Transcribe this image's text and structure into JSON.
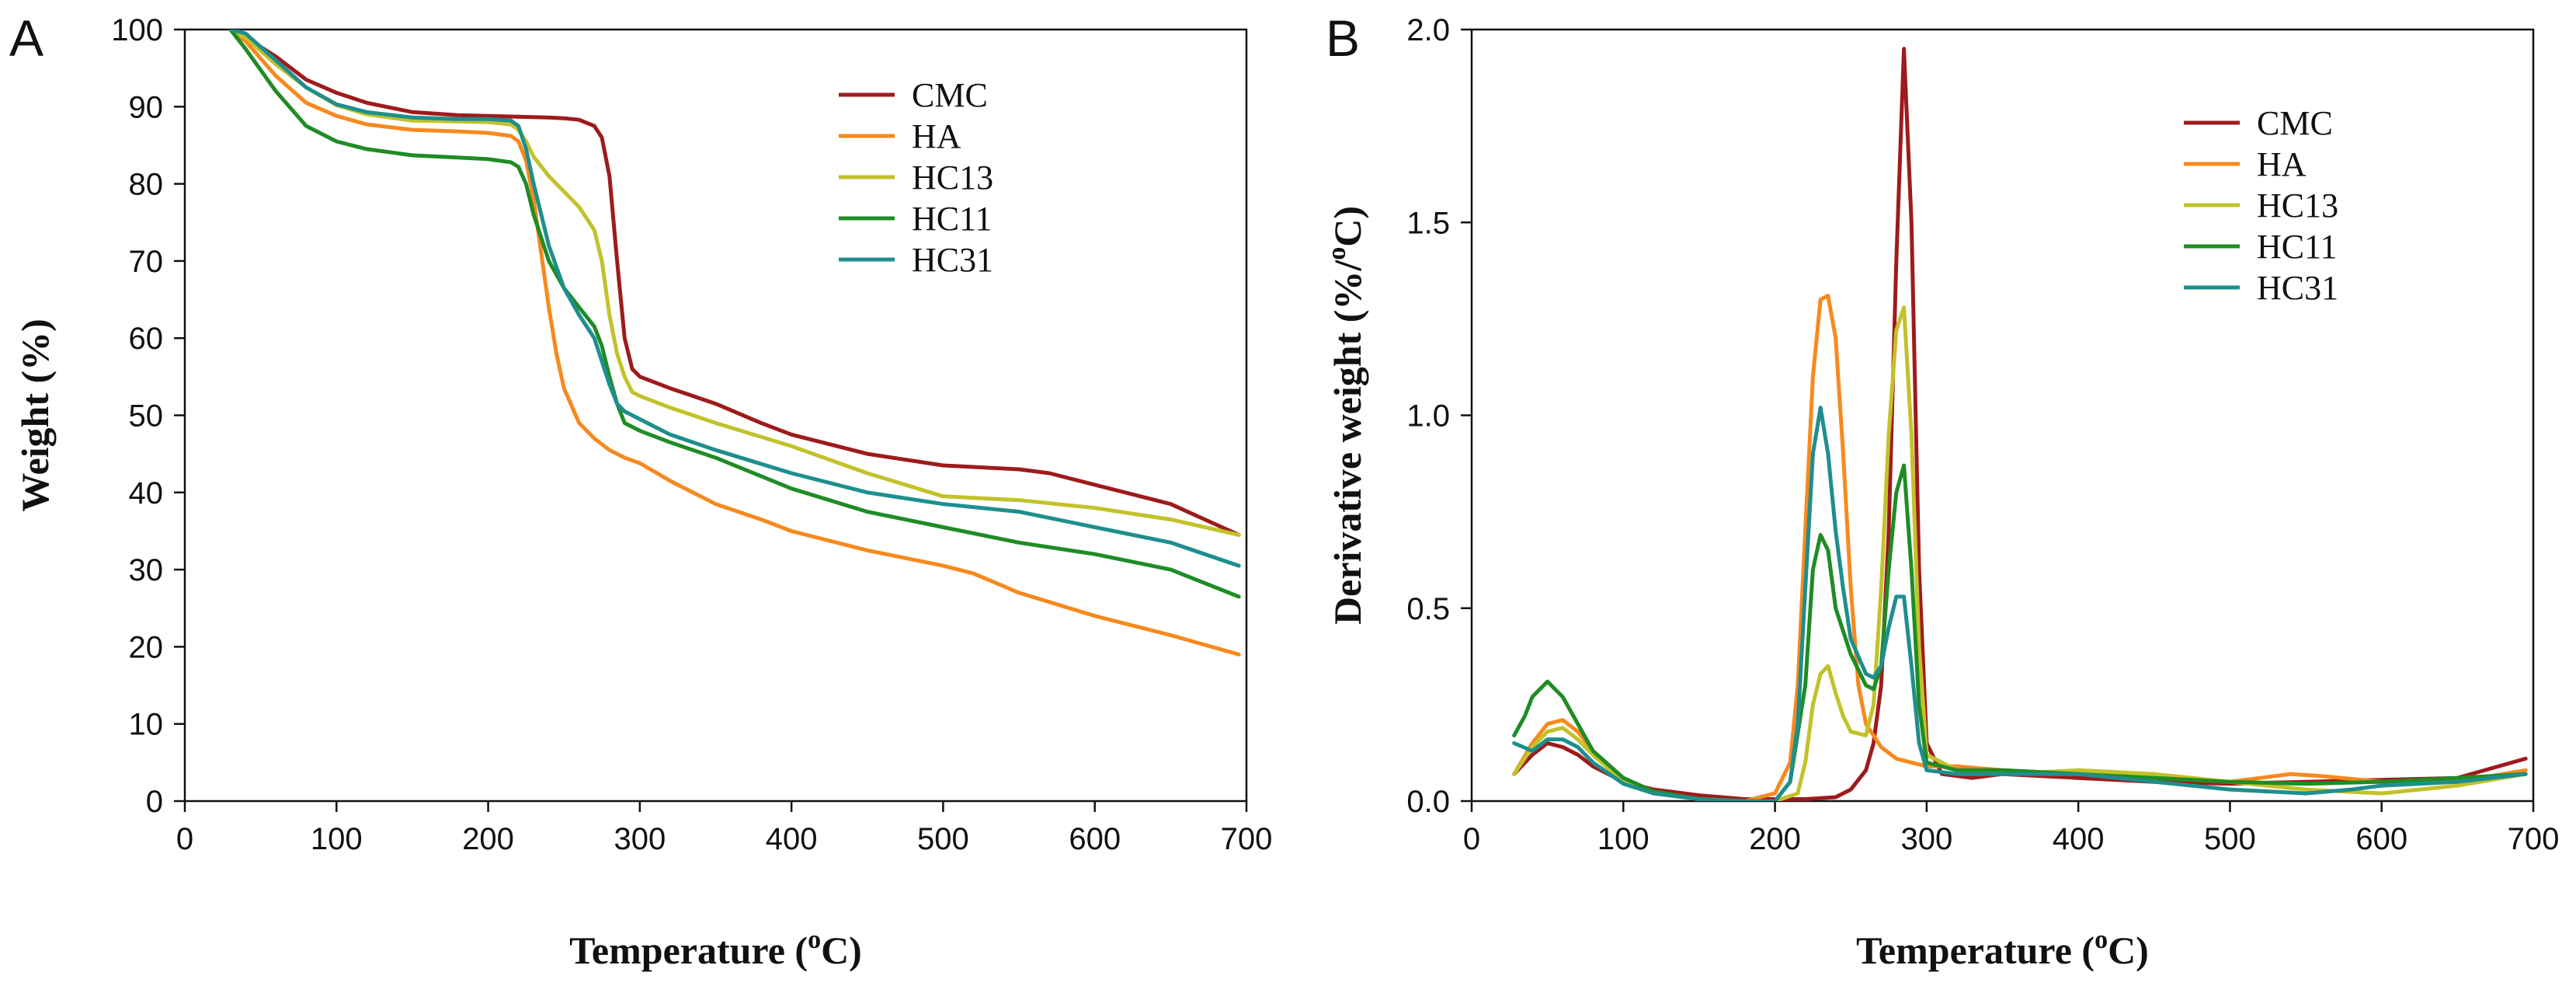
{
  "figure": {
    "background": "#ffffff"
  },
  "chart_data": [
    {
      "id": "A",
      "panel_label": "A",
      "type": "line",
      "title": "",
      "xlabel": {
        "pre": "Temperature (",
        "sup": "o",
        "post": "C)"
      },
      "ylabel": {
        "text": "Weight (%)"
      },
      "xlim": [
        0,
        700
      ],
      "ylim": [
        0,
        100
      ],
      "xticks": [
        0,
        100,
        200,
        300,
        400,
        500,
        600,
        700
      ],
      "yticks": [
        0,
        10,
        20,
        30,
        40,
        50,
        60,
        70,
        80,
        90,
        100
      ],
      "grid": false,
      "legend": "top-right",
      "series": [
        {
          "name": "CMC",
          "color": "#9e1b1b",
          "x": [
            30,
            40,
            60,
            80,
            100,
            120,
            150,
            180,
            200,
            220,
            240,
            250,
            260,
            270,
            275,
            280,
            285,
            290,
            295,
            300,
            320,
            350,
            380,
            400,
            450,
            500,
            550,
            570,
            600,
            650,
            695
          ],
          "y": [
            100,
            99,
            96.5,
            93.5,
            91.8,
            90.5,
            89.3,
            88.9,
            88.8,
            88.7,
            88.6,
            88.5,
            88.3,
            87.5,
            86,
            81,
            70,
            60,
            56,
            55,
            53.5,
            51.5,
            49,
            47.5,
            45,
            43.5,
            43,
            42.5,
            41,
            38.5,
            34.5
          ]
        },
        {
          "name": "HA",
          "color": "#f7891e",
          "x": [
            30,
            40,
            60,
            80,
            100,
            120,
            150,
            180,
            200,
            215,
            220,
            225,
            230,
            235,
            240,
            245,
            250,
            260,
            270,
            280,
            290,
            300,
            320,
            350,
            380,
            400,
            450,
            500,
            520,
            550,
            600,
            650,
            695
          ],
          "y": [
            100,
            98.5,
            94,
            90.5,
            88.8,
            87.7,
            87,
            86.8,
            86.6,
            86.2,
            85.5,
            83,
            78,
            71,
            64,
            58,
            53.5,
            49,
            47,
            45.5,
            44.5,
            43.8,
            41.5,
            38.5,
            36.5,
            35,
            32.5,
            30.5,
            29.5,
            27,
            24,
            21.5,
            19
          ]
        },
        {
          "name": "HC13",
          "color": "#c2c22a",
          "x": [
            30,
            40,
            60,
            80,
            100,
            120,
            150,
            180,
            200,
            215,
            220,
            225,
            230,
            240,
            250,
            260,
            270,
            275,
            280,
            285,
            290,
            295,
            300,
            320,
            350,
            400,
            450,
            500,
            550,
            600,
            650,
            695
          ],
          "y": [
            100,
            99,
            95.5,
            92.5,
            90.2,
            89,
            88.2,
            88.1,
            88,
            87.7,
            87,
            85.5,
            83.5,
            81,
            79,
            77,
            74,
            70,
            63,
            58,
            55,
            53,
            52.5,
            51,
            49,
            46,
            42.5,
            39.5,
            39,
            38,
            36.5,
            34.5
          ]
        },
        {
          "name": "HC11",
          "color": "#1f8c25",
          "x": [
            30,
            40,
            60,
            80,
            100,
            120,
            150,
            180,
            200,
            215,
            220,
            225,
            230,
            240,
            250,
            260,
            270,
            275,
            280,
            285,
            290,
            295,
            300,
            320,
            350,
            400,
            450,
            500,
            550,
            600,
            650,
            695
          ],
          "y": [
            100,
            97.5,
            92,
            87.5,
            85.5,
            84.5,
            83.7,
            83.4,
            83.2,
            82.8,
            82.2,
            80,
            76,
            70,
            66.5,
            64,
            61.5,
            59,
            55,
            51.5,
            49,
            48.5,
            48,
            46.5,
            44.5,
            40.5,
            37.5,
            35.5,
            33.5,
            32,
            30,
            26.5
          ]
        },
        {
          "name": "HC31",
          "color": "#1e8e8e",
          "x": [
            30,
            40,
            60,
            80,
            100,
            120,
            150,
            180,
            200,
            215,
            220,
            225,
            230,
            240,
            250,
            260,
            270,
            275,
            280,
            285,
            290,
            300,
            320,
            350,
            400,
            450,
            500,
            550,
            600,
            650,
            695
          ],
          "y": [
            100,
            99.5,
            96,
            92.5,
            90.3,
            89.3,
            88.6,
            88.4,
            88.4,
            88.2,
            87.5,
            84.5,
            80,
            72,
            66.5,
            63,
            60,
            57,
            54,
            51.5,
            50.5,
            49.5,
            47.5,
            45.5,
            42.5,
            40,
            38.5,
            37.5,
            35.5,
            33.5,
            30.5
          ]
        }
      ]
    },
    {
      "id": "B",
      "panel_label": "B",
      "type": "line",
      "title": "",
      "xlabel": {
        "pre": "Temperature (",
        "sup": "o",
        "post": "C)"
      },
      "ylabel": {
        "pre": "Derivative weight (%/",
        "sup": "o",
        "post": "C)"
      },
      "xlim": [
        0,
        700
      ],
      "ylim": [
        0,
        2.0
      ],
      "xticks": [
        0,
        100,
        200,
        300,
        400,
        500,
        600,
        700
      ],
      "yticks": [
        0.0,
        0.5,
        1.0,
        1.5,
        2.0
      ],
      "ytick_labels": [
        "0.0",
        "0.5",
        "1.0",
        "1.5",
        "2.0"
      ],
      "grid": false,
      "legend": "top-right",
      "series": [
        {
          "name": "CMC",
          "color": "#9e1b1b",
          "x": [
            28,
            40,
            50,
            60,
            70,
            80,
            100,
            120,
            150,
            180,
            200,
            220,
            240,
            250,
            260,
            265,
            270,
            275,
            280,
            285,
            290,
            295,
            300,
            310,
            330,
            350,
            400,
            450,
            500,
            550,
            600,
            650,
            695
          ],
          "y": [
            0.07,
            0.12,
            0.15,
            0.14,
            0.12,
            0.09,
            0.05,
            0.03,
            0.015,
            0.005,
            0.005,
            0.005,
            0.01,
            0.03,
            0.08,
            0.15,
            0.3,
            0.7,
            1.4,
            1.95,
            1.5,
            0.6,
            0.15,
            0.07,
            0.06,
            0.07,
            0.06,
            0.05,
            0.045,
            0.05,
            0.055,
            0.06,
            0.11
          ]
        },
        {
          "name": "HA",
          "color": "#f7891e",
          "x": [
            28,
            40,
            50,
            60,
            70,
            80,
            100,
            120,
            150,
            180,
            200,
            210,
            215,
            220,
            225,
            230,
            235,
            240,
            245,
            250,
            255,
            260,
            270,
            280,
            290,
            300,
            320,
            350,
            400,
            450,
            500,
            540,
            560,
            600,
            650,
            695
          ],
          "y": [
            0.07,
            0.15,
            0.2,
            0.21,
            0.18,
            0.13,
            0.06,
            0.025,
            0.005,
            0.0,
            0.02,
            0.1,
            0.3,
            0.7,
            1.1,
            1.3,
            1.31,
            1.2,
            0.9,
            0.55,
            0.3,
            0.2,
            0.14,
            0.11,
            0.1,
            0.09,
            0.09,
            0.08,
            0.07,
            0.06,
            0.05,
            0.07,
            0.065,
            0.05,
            0.05,
            0.08
          ]
        },
        {
          "name": "HC13",
          "color": "#c2c22a",
          "x": [
            28,
            40,
            50,
            60,
            70,
            80,
            100,
            120,
            150,
            180,
            200,
            215,
            220,
            225,
            230,
            235,
            240,
            245,
            250,
            260,
            265,
            270,
            275,
            280,
            285,
            290,
            295,
            300,
            320,
            350,
            400,
            450,
            500,
            550,
            600,
            650,
            695
          ],
          "y": [
            0.07,
            0.14,
            0.18,
            0.19,
            0.16,
            0.12,
            0.05,
            0.02,
            0.005,
            0.0,
            0.0,
            0.02,
            0.1,
            0.25,
            0.33,
            0.35,
            0.28,
            0.22,
            0.18,
            0.17,
            0.25,
            0.55,
            0.95,
            1.22,
            1.28,
            0.95,
            0.4,
            0.12,
            0.08,
            0.07,
            0.08,
            0.07,
            0.05,
            0.03,
            0.02,
            0.04,
            0.07
          ]
        },
        {
          "name": "HC11",
          "color": "#1f8c25",
          "x": [
            28,
            35,
            40,
            50,
            60,
            70,
            80,
            100,
            120,
            150,
            180,
            200,
            210,
            220,
            225,
            230,
            235,
            240,
            250,
            260,
            265,
            270,
            275,
            280,
            285,
            290,
            295,
            300,
            320,
            350,
            400,
            450,
            500,
            550,
            600,
            650,
            695
          ],
          "y": [
            0.17,
            0.22,
            0.27,
            0.31,
            0.27,
            0.2,
            0.13,
            0.06,
            0.025,
            0.005,
            0.0,
            0.0,
            0.05,
            0.3,
            0.6,
            0.69,
            0.65,
            0.5,
            0.38,
            0.3,
            0.29,
            0.35,
            0.6,
            0.8,
            0.87,
            0.6,
            0.25,
            0.1,
            0.08,
            0.08,
            0.07,
            0.06,
            0.05,
            0.045,
            0.05,
            0.06,
            0.07
          ]
        },
        {
          "name": "HC31",
          "color": "#1e8e8e",
          "x": [
            28,
            40,
            50,
            60,
            70,
            80,
            100,
            120,
            150,
            180,
            200,
            210,
            215,
            220,
            225,
            230,
            235,
            240,
            245,
            250,
            260,
            265,
            270,
            275,
            280,
            285,
            290,
            295,
            300,
            320,
            350,
            400,
            450,
            500,
            550,
            580,
            600,
            650,
            695
          ],
          "y": [
            0.15,
            0.13,
            0.16,
            0.16,
            0.14,
            0.1,
            0.045,
            0.02,
            0.005,
            0.0,
            0.0,
            0.05,
            0.2,
            0.55,
            0.9,
            1.02,
            0.9,
            0.7,
            0.55,
            0.42,
            0.33,
            0.32,
            0.35,
            0.45,
            0.53,
            0.53,
            0.35,
            0.15,
            0.08,
            0.07,
            0.07,
            0.07,
            0.05,
            0.03,
            0.02,
            0.03,
            0.04,
            0.05,
            0.07
          ]
        }
      ]
    }
  ]
}
